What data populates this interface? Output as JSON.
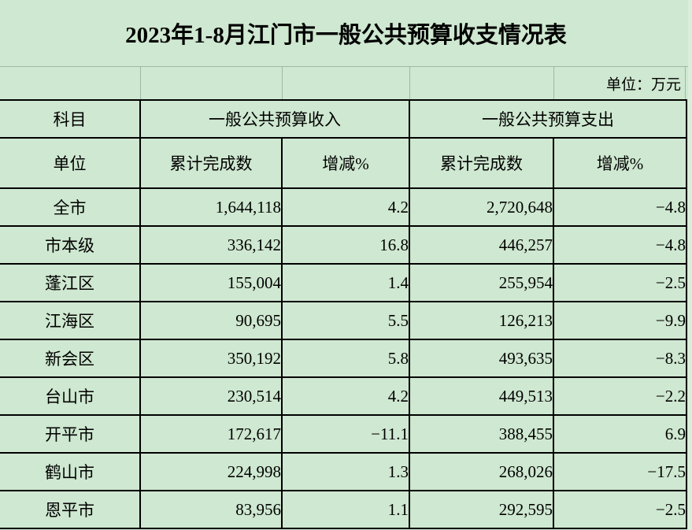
{
  "title": "2023年1-8月江门市一般公共预算收支情况表",
  "unit_note": "单位：万元",
  "table": {
    "header": {
      "subject_label": "科目",
      "revenue_group_label": "一般公共预算收入",
      "expenditure_group_label": "一般公共预算支出",
      "unit_label": "单位",
      "revenue_cumulative_label": "累计完成数",
      "revenue_change_label": "增减%",
      "expenditure_cumulative_label": "累计完成数",
      "expenditure_change_label": "增减%"
    },
    "rows": [
      {
        "unit": "全市",
        "revenue": "1,644,118",
        "revenue_change": "4.2",
        "expenditure": "2,720,648",
        "expenditure_change": "−4.8"
      },
      {
        "unit": "市本级",
        "revenue": "336,142",
        "revenue_change": "16.8",
        "expenditure": "446,257",
        "expenditure_change": "−4.8"
      },
      {
        "unit": "蓬江区",
        "revenue": "155,004",
        "revenue_change": "1.4",
        "expenditure": "255,954",
        "expenditure_change": "−2.5"
      },
      {
        "unit": "江海区",
        "revenue": "90,695",
        "revenue_change": "5.5",
        "expenditure": "126,213",
        "expenditure_change": "−9.9"
      },
      {
        "unit": "新会区",
        "revenue": "350,192",
        "revenue_change": "5.8",
        "expenditure": "493,635",
        "expenditure_change": "−8.3"
      },
      {
        "unit": "台山市",
        "revenue": "230,514",
        "revenue_change": "4.2",
        "expenditure": "449,513",
        "expenditure_change": "−2.2"
      },
      {
        "unit": "开平市",
        "revenue": "172,617",
        "revenue_change": "−11.1",
        "expenditure": "388,455",
        "expenditure_change": "6.9"
      },
      {
        "unit": "鹤山市",
        "revenue": "224,998",
        "revenue_change": "1.3",
        "expenditure": "268,026",
        "expenditure_change": "−17.5"
      },
      {
        "unit": "恩平市",
        "revenue": "83,956",
        "revenue_change": "1.1",
        "expenditure": "292,595",
        "expenditure_change": "−2.5"
      }
    ]
  },
  "colors": {
    "background": "#cfe8d1",
    "outer_margin": "#daeedb",
    "border": "#000000",
    "gridline": "#a3b6a5"
  }
}
